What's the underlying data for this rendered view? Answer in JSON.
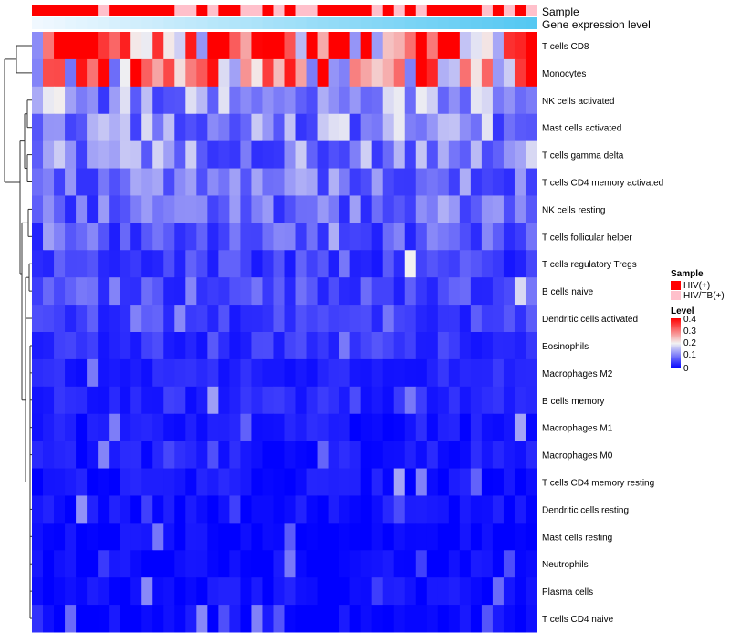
{
  "chart_data": {
    "type": "heatmap",
    "title": "",
    "annotation_tracks": [
      {
        "name": "Sample",
        "label": "Sample"
      },
      {
        "name": "Gene expression level",
        "label": "Gene expression level"
      }
    ],
    "rows": [
      "T cells CD8",
      "Monocytes",
      "NK cells activated",
      "Mast cells activated",
      "T cells gamma delta",
      "T cells CD4 memory activated",
      "NK cells resting",
      "T cells follicular helper",
      "T cells regulatory  Tregs",
      "B cells naive",
      "Dendritic cells activated",
      "Eosinophils",
      "Macrophages M2",
      "B cells memory",
      "Macrophages M1",
      "Macrophages M0",
      "T cells CD4 memory resting",
      "Dendritic cells resting",
      "Mast cells resting",
      "Neutrophils",
      "Plasma cells",
      "T cells CD4 naive"
    ],
    "n_samples": 46,
    "sample_groups": [
      "H",
      "H",
      "H",
      "H",
      "H",
      "H",
      "T",
      "H",
      "H",
      "H",
      "H",
      "H",
      "H",
      "T",
      "T",
      "H",
      "T",
      "H",
      "H",
      "T",
      "T",
      "H",
      "T",
      "H",
      "T",
      "T",
      "H",
      "H",
      "H",
      "H",
      "H",
      "T",
      "H",
      "T",
      "H",
      "T",
      "H",
      "H",
      "H",
      "H",
      "H",
      "T",
      "H",
      "T",
      "H",
      "T"
    ],
    "sample_expression_level": [
      0.0,
      0.02,
      0.04,
      0.07,
      0.09,
      0.11,
      0.13,
      0.16,
      0.18,
      0.2,
      0.22,
      0.24,
      0.27,
      0.29,
      0.31,
      0.33,
      0.36,
      0.38,
      0.4,
      0.42,
      0.44,
      0.47,
      0.49,
      0.51,
      0.53,
      0.56,
      0.58,
      0.6,
      0.62,
      0.64,
      0.67,
      0.69,
      0.71,
      0.73,
      0.76,
      0.78,
      0.8,
      0.82,
      0.84,
      0.87,
      0.89,
      0.91,
      0.93,
      0.96,
      0.98,
      1.0
    ],
    "row_means": [
      0.33,
      0.25,
      0.12,
      0.12,
      0.11,
      0.09,
      0.08,
      0.07,
      0.05,
      0.06,
      0.05,
      0.04,
      0.03,
      0.03,
      0.02,
      0.02,
      0.015,
      0.01,
      0.005,
      0.004,
      0.01,
      0.005
    ],
    "value_range": [
      0,
      0.4
    ],
    "legend_sample": {
      "title": "Sample",
      "entries": [
        {
          "label": "HIV(+)",
          "color": "#ff0000"
        },
        {
          "label": "HIV/TB(+)",
          "color": "#ffc0cb"
        }
      ]
    },
    "legend_level": {
      "title": "Level",
      "ticks": [
        "0.4",
        "0.3",
        "0.2",
        "0.1",
        "0"
      ]
    },
    "colors": {
      "low": "#0000ff",
      "mid": "#f2f2f2",
      "high": "#ff0000",
      "track_start": "#f0f8ff",
      "track_end": "#55c8f2"
    }
  }
}
